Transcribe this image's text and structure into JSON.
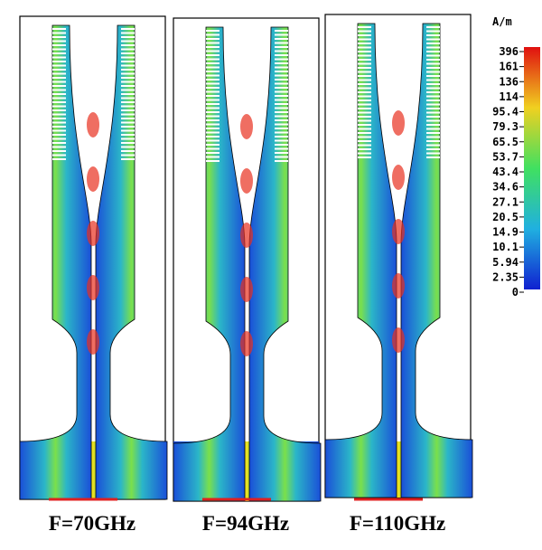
{
  "colorbar": {
    "unit": "A/m",
    "labels": [
      "396",
      "161",
      "136",
      "114",
      "95.4",
      "79.3",
      "65.5",
      "53.7",
      "43.4",
      "34.6",
      "27.1",
      "20.5",
      "14.9",
      "10.1",
      "5.94",
      "2.35",
      "0"
    ]
  },
  "panels": [
    {
      "label": "F=70GHz"
    },
    {
      "label": "F=94GHz"
    },
    {
      "label": "F=110GHz"
    }
  ]
}
